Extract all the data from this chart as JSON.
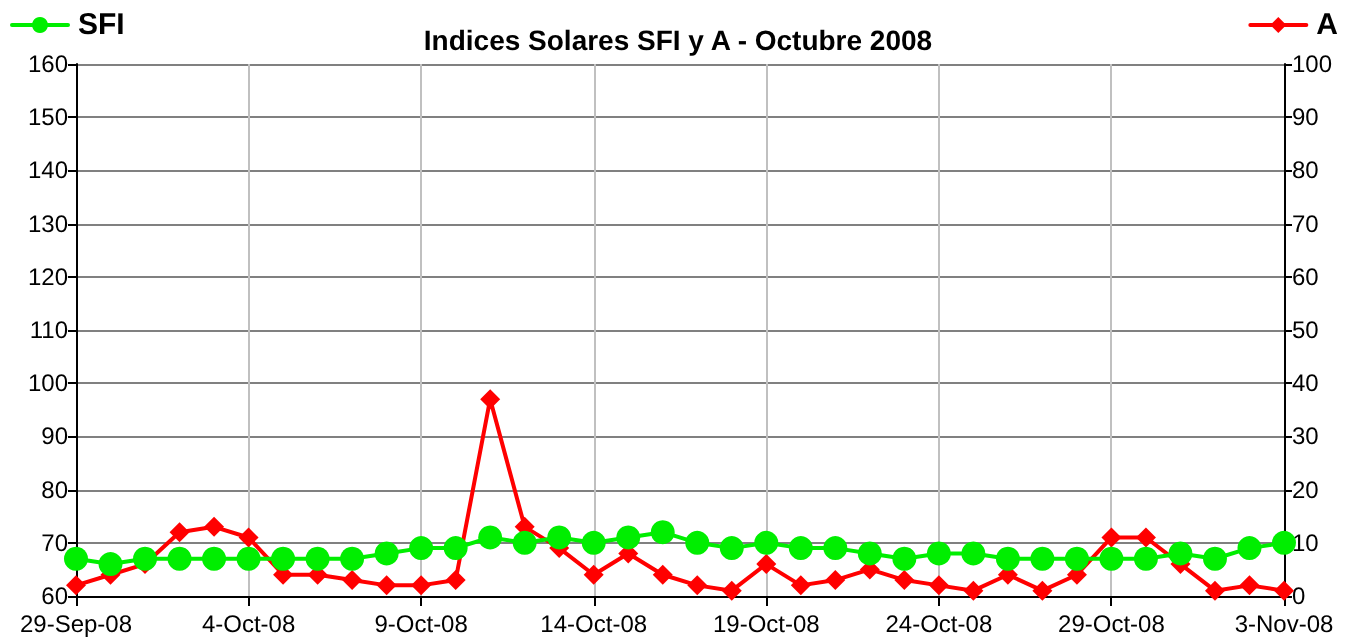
{
  "chart_data": {
    "type": "line",
    "title": "Indices Solares SFI y A - Octubre 2008",
    "x": [
      "2008-09-29",
      "2008-09-30",
      "2008-10-01",
      "2008-10-02",
      "2008-10-03",
      "2008-10-04",
      "2008-10-05",
      "2008-10-06",
      "2008-10-07",
      "2008-10-08",
      "2008-10-09",
      "2008-10-10",
      "2008-10-11",
      "2008-10-12",
      "2008-10-13",
      "2008-10-14",
      "2008-10-15",
      "2008-10-16",
      "2008-10-17",
      "2008-10-18",
      "2008-10-19",
      "2008-10-20",
      "2008-10-21",
      "2008-10-22",
      "2008-10-23",
      "2008-10-24",
      "2008-10-25",
      "2008-10-26",
      "2008-10-27",
      "2008-10-28",
      "2008-10-29",
      "2008-10-30",
      "2008-10-31",
      "2008-11-01",
      "2008-11-02",
      "2008-11-03"
    ],
    "series": [
      {
        "name": "SFI",
        "color": "#00ee00",
        "marker": "circle",
        "values": [
          67,
          66,
          67,
          67,
          67,
          67,
          67,
          67,
          67,
          68,
          69,
          69,
          71,
          70,
          71,
          70,
          71,
          72,
          70,
          69,
          70,
          69,
          69,
          68,
          67,
          68,
          68,
          67,
          67,
          67,
          67,
          67,
          68,
          67,
          69,
          70
        ]
      },
      {
        "name": "A",
        "color": "#ff0000",
        "marker": "diamond",
        "axis": "y2",
        "values": [
          2,
          4,
          6,
          12,
          13,
          11,
          4,
          4,
          3,
          2,
          2,
          3,
          37,
          13,
          9,
          4,
          8,
          4,
          2,
          1,
          6,
          2,
          3,
          5,
          3,
          2,
          1,
          4,
          1,
          4,
          11,
          11,
          6,
          1,
          2,
          1
        ]
      }
    ],
    "xlim": [
      "2008-09-29",
      "2008-11-03"
    ],
    "xticks": [
      {
        "value": "2008-09-29",
        "label": "29-Sep-08"
      },
      {
        "value": "2008-10-04",
        "label": "4-Oct-08"
      },
      {
        "value": "2008-10-09",
        "label": "9-Oct-08"
      },
      {
        "value": "2008-10-14",
        "label": "14-Oct-08"
      },
      {
        "value": "2008-10-19",
        "label": "19-Oct-08"
      },
      {
        "value": "2008-10-24",
        "label": "24-Oct-08"
      },
      {
        "value": "2008-10-29",
        "label": "29-Oct-08"
      },
      {
        "value": "2008-11-03",
        "label": "3-Nov-08"
      }
    ],
    "ylim": [
      60,
      160
    ],
    "yticks": [
      60,
      70,
      80,
      90,
      100,
      110,
      120,
      130,
      140,
      150,
      160
    ],
    "y2lim": [
      0,
      100
    ],
    "y2ticks": [
      0,
      10,
      20,
      30,
      40,
      50,
      60,
      70,
      80,
      90,
      100
    ],
    "grid": true,
    "legend": "top",
    "line_style": "solid"
  }
}
